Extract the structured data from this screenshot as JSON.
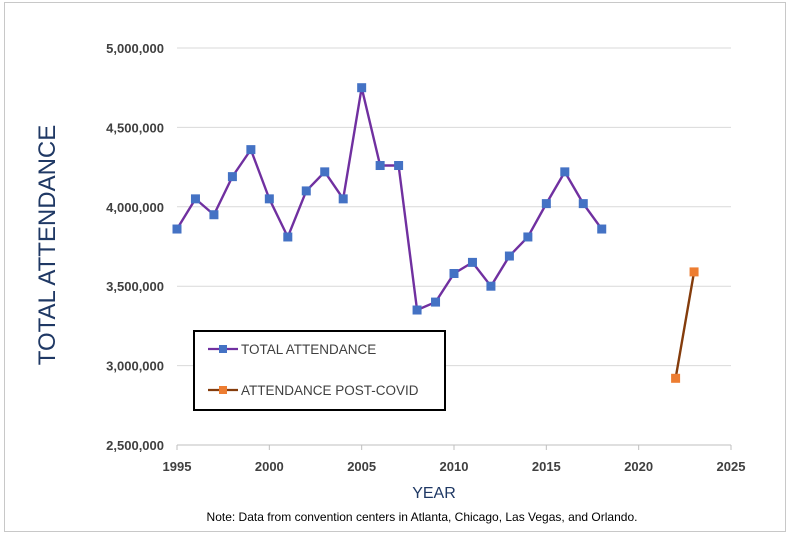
{
  "chart_data": {
    "type": "line",
    "title": "",
    "xlabel": "YEAR",
    "ylabel": "TOTAL ATTENDANCE",
    "note": "Note: Data from convention centers in Atlanta, Chicago, Las Vegas, and Orlando.",
    "xlim": [
      1995,
      2025
    ],
    "ylim": [
      2500000,
      5000000
    ],
    "x_ticks": [
      1995,
      2000,
      2005,
      2010,
      2015,
      2020,
      2025
    ],
    "y_ticks": [
      2500000,
      3000000,
      3500000,
      4000000,
      4500000,
      5000000
    ],
    "y_tick_labels": [
      "2,500,000",
      "3,000,000",
      "3,500,000",
      "4,000,000",
      "4,500,000",
      "5,000,000"
    ],
    "legend_position": "lower-left",
    "series": [
      {
        "name": "TOTAL ATTENDANCE",
        "line_color": "#7030a0",
        "marker_color": "#4472c4",
        "x": [
          1995,
          1996,
          1997,
          1998,
          1999,
          2000,
          2001,
          2002,
          2003,
          2004,
          2005,
          2006,
          2007,
          2008,
          2009,
          2010,
          2011,
          2012,
          2013,
          2014,
          2015,
          2016,
          2017,
          2018
        ],
        "values": [
          3860000,
          4050000,
          3950000,
          4190000,
          4360000,
          4050000,
          3810000,
          4100000,
          4220000,
          4050000,
          4750000,
          4260000,
          4260000,
          3350000,
          3400000,
          3580000,
          3650000,
          3500000,
          3690000,
          3810000,
          4020000,
          4220000,
          4020000,
          3860000
        ]
      },
      {
        "name": "ATTENDANCE POST-COVID",
        "line_color": "#843c0c",
        "marker_color": "#ed7d31",
        "x": [
          2022,
          2023
        ],
        "values": [
          2920000,
          3590000
        ]
      }
    ]
  }
}
